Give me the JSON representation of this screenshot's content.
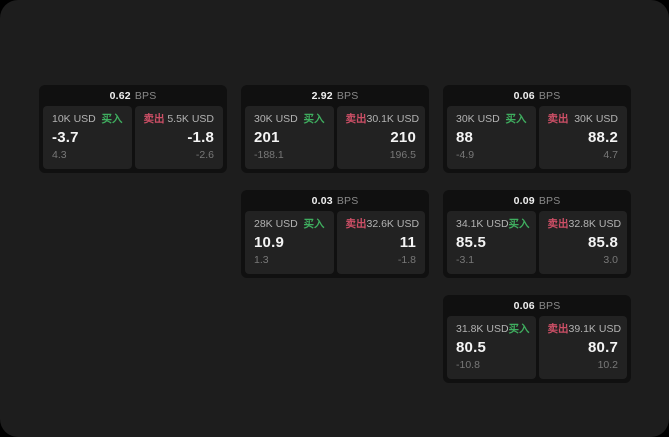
{
  "labels": {
    "bps": "BPS",
    "buy": "买入",
    "sell": "卖出"
  },
  "colors": {
    "buy": "#3fae5f",
    "sell": "#cd4f66",
    "page-bg": "#1d1d1d",
    "card-bg": "#101010",
    "panel-bg": "#222222"
  },
  "cards": [
    {
      "bps": "0.62",
      "buy_notional": "10K USD",
      "buy_price": "-3.7",
      "buy_delta": "4.3",
      "sell_notional": "5.5K USD",
      "sell_price": "-1.8",
      "sell_delta": "-2.6"
    },
    {
      "bps": "2.92",
      "buy_notional": "30K USD",
      "buy_price": "201",
      "buy_delta": "-188.1",
      "sell_notional": "30.1K USD",
      "sell_price": "210",
      "sell_delta": "196.5"
    },
    {
      "bps": "0.06",
      "buy_notional": "30K USD",
      "buy_price": "88",
      "buy_delta": "-4.9",
      "sell_notional": "30K USD",
      "sell_price": "88.2",
      "sell_delta": "4.7"
    },
    {
      "bps": "0.03",
      "buy_notional": "28K USD",
      "buy_price": "10.9",
      "buy_delta": "1.3",
      "sell_notional": "32.6K USD",
      "sell_price": "11",
      "sell_delta": "-1.8"
    },
    {
      "bps": "0.09",
      "buy_notional": "34.1K USD",
      "buy_price": "85.5",
      "buy_delta": "-3.1",
      "sell_notional": "32.8K USD",
      "sell_price": "85.8",
      "sell_delta": "3.0"
    },
    {
      "bps": "0.06",
      "buy_notional": "31.8K USD",
      "buy_price": "80.5",
      "buy_delta": "-10.8",
      "sell_notional": "39.1K USD",
      "sell_price": "80.7",
      "sell_delta": "10.2"
    }
  ]
}
